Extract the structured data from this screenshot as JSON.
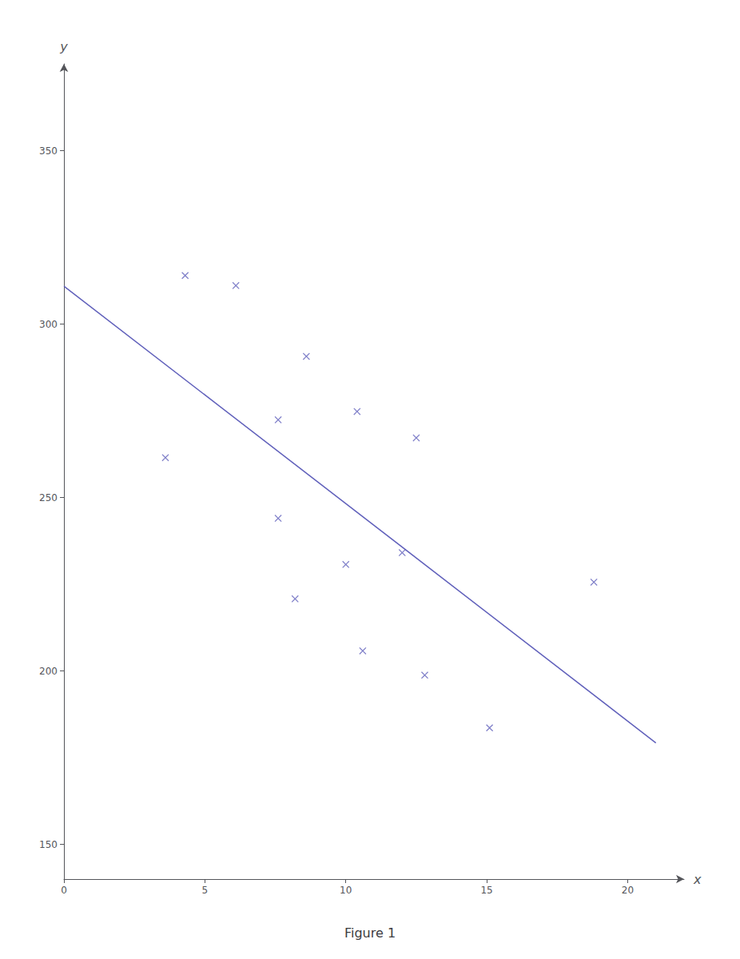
{
  "chart_data": {
    "type": "scatter",
    "title": "Figure 1",
    "x_label": "x",
    "y_label": "y",
    "xlim": [
      0,
      22
    ],
    "ylim": [
      140,
      375
    ],
    "xticks": [
      0,
      5,
      10,
      15,
      20
    ],
    "yticks": [
      150,
      200,
      250,
      300,
      350
    ],
    "grid": false,
    "series": [
      {
        "type": "scatter",
        "marker": "x",
        "color": "#6060bb",
        "x": [
          8.6,
          12.8,
          10.0,
          7.6,
          3.6,
          10.4,
          12.5,
          15.1,
          18.8,
          7.6,
          4.3,
          8.2,
          6.1,
          12.0,
          10.6
        ],
        "values": [
          290.7,
          198.8,
          230.7,
          272.4,
          261.5,
          274.8,
          267.2,
          183.6,
          225.6,
          244.0,
          314.0,
          220.8,
          311.1,
          234.1,
          205.8
        ]
      },
      {
        "type": "line",
        "color": "#6060bb",
        "x": [
          0,
          21
        ],
        "values": [
          310.94,
          179.27
        ]
      }
    ]
  }
}
